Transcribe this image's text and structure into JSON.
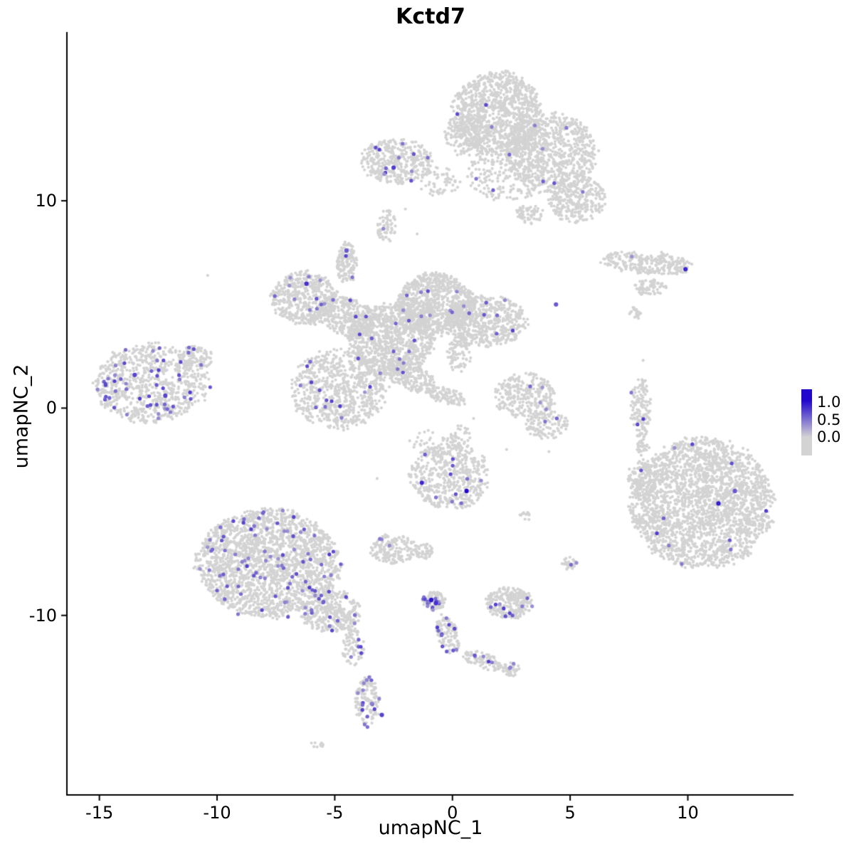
{
  "chart_data": {
    "type": "scatter",
    "title": "Kctd7",
    "subtitle": "",
    "xlabel": "umapNC_1",
    "ylabel": "umapNC_2",
    "xlim": [
      -16.35,
      14.49
    ],
    "ylim": [
      -18.66,
      18.14
    ],
    "grid": false,
    "xticks": [
      -15,
      -10,
      -5,
      0,
      5,
      10
    ],
    "xtick_labels": [
      "-15",
      "-10",
      "-5",
      "0",
      "5",
      "10"
    ],
    "yticks": [
      10,
      0,
      -10
    ],
    "ytick_labels": [
      "10",
      "0",
      "-10"
    ],
    "point_color_low": "#d3d3d3",
    "point_color_high": "#2107cd",
    "legend": {
      "position": "right",
      "tick_labels": [
        "1.0",
        "0.5",
        "0.0"
      ],
      "low_color": "#d3d3d3",
      "high_color": "#2107cd"
    },
    "clusters_format": "[cx, cy, rx, ry, n_points, frac_expressing, rotation_deg]",
    "clusters": [
      [
        1.9,
        14.2,
        1.9,
        2.0,
        1100,
        0.004,
        0
      ],
      [
        4.2,
        12.3,
        1.9,
        1.9,
        800,
        0.006,
        0
      ],
      [
        5.3,
        10.1,
        1.2,
        1.2,
        300,
        0.004,
        0
      ],
      [
        2.3,
        11.3,
        1.7,
        1.4,
        220,
        0.01,
        0
      ],
      [
        0.5,
        13.2,
        0.8,
        1.0,
        150,
        0,
        0
      ],
      [
        -0.6,
        10.9,
        0.9,
        0.7,
        60,
        0,
        0
      ],
      [
        3.3,
        9.4,
        0.6,
        0.5,
        60,
        0,
        0
      ],
      [
        -2.4,
        11.9,
        1.5,
        1.1,
        380,
        0.03,
        0
      ],
      [
        -2.8,
        8.8,
        0.4,
        0.8,
        60,
        0.02,
        0
      ],
      [
        8.3,
        7.0,
        2.0,
        0.55,
        260,
        0.004,
        -5
      ],
      [
        8.4,
        5.8,
        0.7,
        0.4,
        70,
        0,
        0
      ],
      [
        7.8,
        4.6,
        0.3,
        0.3,
        20,
        0,
        0
      ],
      [
        -6.3,
        5.3,
        1.4,
        1.3,
        500,
        0.02,
        0
      ],
      [
        -4.5,
        4.4,
        1.3,
        0.9,
        320,
        0.015,
        -25
      ],
      [
        -4.5,
        7.0,
        0.45,
        1.0,
        130,
        0.015,
        0
      ],
      [
        -2.6,
        3.3,
        1.8,
        1.7,
        950,
        0.012,
        0
      ],
      [
        -0.7,
        5.0,
        1.6,
        1.5,
        900,
        0.012,
        0
      ],
      [
        1.5,
        4.2,
        1.7,
        1.2,
        550,
        0.01,
        0
      ],
      [
        -4.8,
        0.9,
        2.0,
        1.9,
        750,
        0.018,
        0
      ],
      [
        -1.9,
        1.6,
        1.4,
        0.6,
        220,
        0.008,
        -30
      ],
      [
        -0.3,
        0.6,
        0.9,
        0.4,
        90,
        0,
        -20
      ],
      [
        0.3,
        2.6,
        0.5,
        0.9,
        90,
        0,
        0
      ],
      [
        -12.8,
        1.2,
        2.4,
        1.9,
        800,
        0.06,
        0
      ],
      [
        -10.9,
        2.4,
        0.7,
        0.6,
        90,
        0.03,
        0
      ],
      [
        3.1,
        0.6,
        1.3,
        1.1,
        280,
        0.015,
        0
      ],
      [
        4.0,
        -0.8,
        0.9,
        0.7,
        120,
        0.015,
        0
      ],
      [
        8.0,
        0.0,
        0.45,
        1.5,
        130,
        0.025,
        0
      ],
      [
        8.1,
        -1.9,
        0.25,
        0.4,
        30,
        0,
        0
      ],
      [
        -0.1,
        -3.3,
        1.7,
        1.6,
        520,
        0.02,
        0
      ],
      [
        0.3,
        -1.4,
        0.5,
        0.6,
        35,
        0,
        0
      ],
      [
        -0.9,
        -1.6,
        1.1,
        0.6,
        35,
        0,
        0
      ],
      [
        -2.5,
        -6.8,
        1.0,
        0.7,
        170,
        0.015,
        0
      ],
      [
        -1.2,
        -6.9,
        0.4,
        0.35,
        45,
        0,
        0
      ],
      [
        10.6,
        -4.6,
        3.0,
        3.1,
        2400,
        0.004,
        0
      ],
      [
        8.2,
        -3.4,
        0.8,
        1.0,
        120,
        0.01,
        0
      ],
      [
        8.0,
        -5.6,
        0.3,
        0.3,
        20,
        0,
        0
      ],
      [
        -7.8,
        -7.5,
        3.0,
        2.6,
        2000,
        0.04,
        0
      ],
      [
        -5.2,
        -9.8,
        1.3,
        1.0,
        350,
        0.045,
        0
      ],
      [
        -4.2,
        -11.5,
        0.5,
        0.9,
        70,
        0.07,
        0
      ],
      [
        -3.6,
        -14.2,
        0.55,
        1.2,
        130,
        0.12,
        0
      ],
      [
        -5.7,
        -16.2,
        0.3,
        0.2,
        14,
        0,
        0
      ],
      [
        -0.8,
        -9.3,
        0.5,
        0.45,
        90,
        0.15,
        0
      ],
      [
        -0.2,
        -10.9,
        0.45,
        1.0,
        110,
        0.1,
        15
      ],
      [
        1.3,
        -12.2,
        0.9,
        0.4,
        90,
        0.05,
        -20
      ],
      [
        2.5,
        -12.6,
        0.35,
        0.35,
        40,
        0.08,
        0
      ],
      [
        2.4,
        -9.4,
        1.0,
        0.75,
        260,
        0.04,
        0
      ],
      [
        5.0,
        -7.5,
        0.35,
        0.3,
        25,
        0.08,
        0
      ],
      [
        3.1,
        -5.2,
        0.25,
        0.25,
        12,
        0,
        0
      ]
    ],
    "singles": [
      [
        -10.4,
        6.4
      ],
      [
        -3.2,
        -3.4
      ],
      [
        4.1,
        -2.1
      ],
      [
        0.9,
        -0.5
      ],
      [
        8.1,
        2.3
      ],
      [
        -1.5,
        8.4
      ],
      [
        2.3,
        -2.0
      ],
      [
        -2.0,
        9.6
      ]
    ],
    "highlight_points_format": "[x, y, expression_value]",
    "highlight_points": [
      [
        0.6,
        -4.0,
        1.0
      ],
      [
        -0.9,
        -9.25,
        0.95
      ],
      [
        -0.7,
        -9.4,
        0.8
      ],
      [
        9.9,
        6.7,
        0.85
      ],
      [
        11.3,
        -4.6,
        0.9
      ],
      [
        -2.5,
        11.6,
        0.75
      ],
      [
        -6.2,
        6.0,
        0.8
      ],
      [
        -1.3,
        -3.6,
        0.85
      ],
      [
        -4.5,
        7.6,
        0.6
      ],
      [
        -13.5,
        1.6,
        0.7
      ],
      [
        -12.2,
        0.6,
        0.7
      ],
      [
        4.4,
        5.0,
        0.6
      ],
      [
        -3.0,
        -14.8,
        0.7
      ],
      [
        12.0,
        -4.0,
        0.6
      ]
    ]
  }
}
